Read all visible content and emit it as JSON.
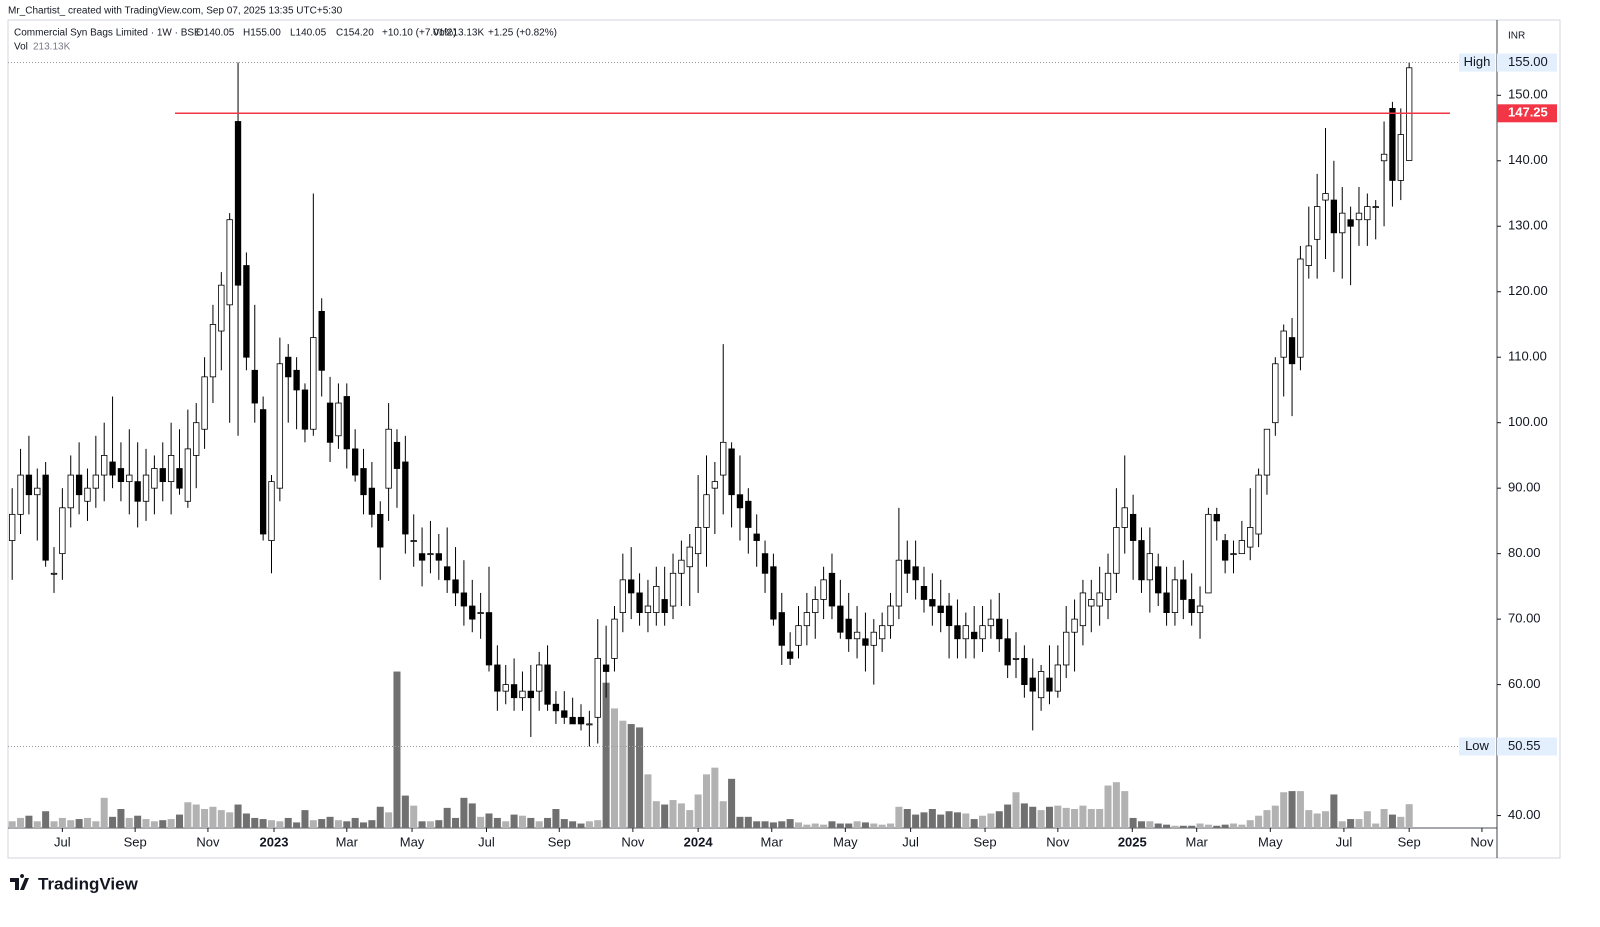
{
  "chart_data": {
    "type": "candlestick",
    "header": "Mr_Chartist_ created with TradingView.com, Sep 07, 2025 13:35 UTC+5:30",
    "legend": {
      "name": "Commercial Syn Bags Limited · 1W · BSE",
      "open": "O140.05",
      "high": "H155.00",
      "low": "L140.05",
      "close": "C154.20",
      "change": "+10.10 (+7.01%)",
      "volume": "Vol213.13K",
      "volume_change": "+1.25 (+0.82%)"
    },
    "volume_legend": {
      "label": "Vol",
      "value": "213.13K"
    },
    "currency": "INR",
    "brand": "TradingView",
    "up_color": "#ffffff",
    "down_color": "#000000",
    "outline_color": "#000000",
    "volume_up_color": "#b2b2b2",
    "volume_down_color": "#707070",
    "ylim": [
      38.1,
      161.5
    ],
    "yticks": [
      {
        "value": 40,
        "label": "40.00"
      },
      {
        "value": 60,
        "label": "60.00"
      },
      {
        "value": 70,
        "label": "70.00"
      },
      {
        "value": 80,
        "label": "80.00"
      },
      {
        "value": 90,
        "label": "90.00"
      },
      {
        "value": 100,
        "label": "100.00"
      },
      {
        "value": 110,
        "label": "110.00"
      },
      {
        "value": 120,
        "label": "120.00"
      },
      {
        "value": 130,
        "label": "130.00"
      },
      {
        "value": 140,
        "label": "140.00"
      },
      {
        "value": 150,
        "label": "150.00"
      }
    ],
    "vlim": [
      0,
      1700
    ],
    "xlim": [
      -0.5,
      177.5
    ],
    "xticks": [
      {
        "value": 6,
        "label": "Jul"
      },
      {
        "value": 14.7,
        "label": "Sep"
      },
      {
        "value": 23.4,
        "label": "Nov"
      },
      {
        "value": 31.3,
        "label": "2023"
      },
      {
        "value": 40,
        "label": "Mar"
      },
      {
        "value": 47.8,
        "label": "May"
      },
      {
        "value": 56.7,
        "label": "Jul"
      },
      {
        "value": 65.4,
        "label": "Sep"
      },
      {
        "value": 74.2,
        "label": "Nov"
      },
      {
        "value": 82,
        "label": "2024"
      },
      {
        "value": 90.8,
        "label": "Mar"
      },
      {
        "value": 99.6,
        "label": "May"
      },
      {
        "value": 107.4,
        "label": "Jul"
      },
      {
        "value": 116.3,
        "label": "Sep"
      },
      {
        "value": 125,
        "label": "Nov"
      },
      {
        "value": 133.9,
        "label": "2025"
      },
      {
        "value": 141.6,
        "label": "Mar"
      },
      {
        "value": 150.4,
        "label": "May"
      },
      {
        "value": 159.2,
        "label": "Jul"
      },
      {
        "value": 167,
        "label": "Sep"
      },
      {
        "value": 175.7,
        "label": "Nov"
      }
    ],
    "high_line": {
      "label": "High",
      "value": 155,
      "value_label": "155.00"
    },
    "low_line": {
      "label": "Low",
      "value": 50.55,
      "value_label": "50.55"
    },
    "level_line": {
      "value": 147.25,
      "label": "147.25",
      "color": "#f23645"
    },
    "ohlcv": [
      [
        82,
        90,
        76,
        86,
        60
      ],
      [
        86,
        96,
        83,
        92,
        90
      ],
      [
        92,
        98,
        86,
        89,
        110
      ],
      [
        89,
        93,
        82,
        90,
        60
      ],
      [
        92,
        94,
        78,
        79,
        150
      ],
      [
        77,
        81,
        74,
        77,
        60
      ],
      [
        80,
        90,
        76,
        87,
        90
      ],
      [
        87,
        95,
        84,
        92,
        70
      ],
      [
        92,
        97,
        86,
        89,
        80
      ],
      [
        88,
        93,
        85,
        90,
        90
      ],
      [
        90,
        98,
        87,
        92,
        60
      ],
      [
        92,
        100,
        88,
        95,
        270
      ],
      [
        94,
        104,
        90,
        92,
        100
      ],
      [
        93,
        97,
        88,
        91,
        170
      ],
      [
        91,
        99,
        86,
        92,
        90
      ],
      [
        91,
        97,
        84,
        88,
        110
      ],
      [
        88,
        96,
        85,
        92,
        80
      ],
      [
        90,
        95,
        86,
        93,
        60
      ],
      [
        93,
        97,
        88,
        91,
        70
      ],
      [
        91,
        100,
        86,
        95,
        80
      ],
      [
        93,
        99,
        89,
        90,
        120
      ],
      [
        88,
        102,
        87,
        96,
        230
      ],
      [
        95,
        103,
        90,
        100,
        210
      ],
      [
        99,
        110,
        96,
        107,
        170
      ],
      [
        107,
        118,
        103,
        115,
        190
      ],
      [
        114,
        123,
        108,
        121,
        160
      ],
      [
        118,
        132,
        100,
        131,
        140
      ],
      [
        146,
        155,
        98,
        121,
        210
      ],
      [
        124,
        126,
        108,
        110,
        130
      ],
      [
        108,
        118,
        100,
        103,
        90
      ],
      [
        102,
        104,
        82,
        83,
        80
      ],
      [
        82,
        92,
        77,
        91,
        70
      ],
      [
        90,
        113,
        88,
        109,
        60
      ],
      [
        110,
        112,
        100,
        107,
        90
      ],
      [
        108,
        110,
        99,
        105,
        50
      ],
      [
        105,
        106,
        97,
        99,
        160
      ],
      [
        99,
        135,
        98,
        113,
        70
      ],
      [
        117,
        119,
        104,
        108,
        80
      ],
      [
        103,
        107,
        94,
        97,
        100
      ],
      [
        98,
        106,
        96,
        103,
        70
      ],
      [
        104,
        106,
        93,
        96,
        60
      ],
      [
        96,
        99,
        91,
        92,
        90
      ],
      [
        93,
        96,
        86,
        89,
        50
      ],
      [
        90,
        94,
        84,
        86,
        70
      ],
      [
        86,
        88,
        76,
        81,
        190
      ],
      [
        90,
        103,
        85,
        99,
        140
      ],
      [
        97,
        99,
        87,
        93,
        1400
      ],
      [
        94,
        98,
        80,
        83,
        290
      ],
      [
        82,
        86,
        78,
        82,
        200
      ],
      [
        80,
        84,
        75,
        79,
        60
      ],
      [
        80,
        85,
        77,
        80,
        60
      ],
      [
        80,
        83,
        76,
        79,
        70
      ],
      [
        78,
        84,
        74,
        76,
        180
      ],
      [
        76,
        81,
        72,
        74,
        90
      ],
      [
        74,
        79,
        69,
        72,
        270
      ],
      [
        72,
        76,
        68,
        70,
        220
      ],
      [
        71,
        74,
        67,
        71,
        100
      ],
      [
        71,
        78,
        62,
        63,
        130
      ],
      [
        63,
        66,
        56,
        59,
        90
      ],
      [
        59,
        63,
        57,
        60,
        60
      ],
      [
        60,
        64,
        56,
        58,
        120
      ],
      [
        58,
        62,
        56,
        59,
        110
      ],
      [
        59,
        63,
        52,
        58,
        90
      ],
      [
        59,
        65,
        56,
        63,
        60
      ],
      [
        63,
        66,
        56,
        57,
        90
      ],
      [
        57,
        59,
        54,
        56,
        170
      ],
      [
        56,
        59,
        54,
        55,
        80
      ],
      [
        55,
        58,
        54,
        54,
        60
      ],
      [
        55,
        57,
        53,
        54,
        40
      ],
      [
        54,
        56,
        50.55,
        54,
        60
      ],
      [
        55,
        70,
        51,
        64,
        70
      ],
      [
        63,
        69,
        58,
        62,
        1300
      ],
      [
        64,
        72,
        62,
        70,
        1070
      ],
      [
        71,
        80,
        68,
        76,
        960
      ],
      [
        76,
        81,
        70,
        74,
        930
      ],
      [
        74,
        77,
        69,
        71,
        900
      ],
      [
        71,
        76,
        68,
        72,
        480
      ],
      [
        71,
        78,
        69,
        75,
        240
      ],
      [
        73,
        78,
        69,
        71,
        210
      ],
      [
        72,
        80,
        70,
        77,
        250
      ],
      [
        77,
        82,
        72,
        79,
        220
      ],
      [
        78,
        83,
        72,
        81,
        160
      ],
      [
        80,
        92,
        74,
        84,
        300
      ],
      [
        84,
        95,
        78,
        89,
        480
      ],
      [
        90,
        94,
        83,
        91,
        540
      ],
      [
        92,
        112,
        86,
        97,
        240
      ],
      [
        96,
        97,
        84,
        89,
        440
      ],
      [
        89,
        95,
        82,
        87,
        100
      ],
      [
        88,
        90,
        80,
        84,
        100
      ],
      [
        83,
        86,
        78,
        82,
        60
      ],
      [
        80,
        82,
        74,
        77,
        60
      ],
      [
        78,
        80,
        69,
        70,
        50
      ],
      [
        71,
        74,
        63,
        66,
        60
      ],
      [
        65,
        68,
        63,
        64,
        80
      ],
      [
        66,
        72,
        64,
        69,
        50
      ],
      [
        69,
        74,
        66,
        71,
        30
      ],
      [
        71,
        75,
        67,
        73,
        40
      ],
      [
        73,
        78,
        70,
        76,
        30
      ],
      [
        77,
        80,
        70,
        72,
        60
      ],
      [
        72,
        76,
        67,
        68,
        40
      ],
      [
        70,
        74,
        65,
        67,
        40
      ],
      [
        67,
        72,
        64,
        68,
        60
      ],
      [
        67,
        71,
        62,
        66,
        50
      ],
      [
        66,
        70,
        60,
        68,
        40
      ],
      [
        67,
        71,
        65,
        69,
        30
      ],
      [
        69,
        74,
        67,
        72,
        40
      ],
      [
        72,
        87,
        70,
        79,
        190
      ],
      [
        79,
        82,
        74,
        77,
        170
      ],
      [
        78,
        82,
        73,
        76,
        120
      ],
      [
        75,
        78,
        71,
        73,
        140
      ],
      [
        73,
        77,
        69,
        72,
        170
      ],
      [
        72,
        76,
        68,
        71,
        120
      ],
      [
        72,
        74,
        64,
        69,
        150
      ],
      [
        69,
        73,
        64,
        67,
        140
      ],
      [
        67,
        71,
        64,
        69,
        130
      ],
      [
        68,
        72,
        64,
        67,
        80
      ],
      [
        67,
        72,
        65,
        69,
        110
      ],
      [
        69,
        73,
        67,
        70,
        130
      ],
      [
        70,
        74,
        65,
        67,
        150
      ],
      [
        67,
        70,
        61,
        63,
        210
      ],
      [
        64,
        68,
        61,
        64,
        320
      ],
      [
        64,
        66,
        58,
        60,
        220
      ],
      [
        61,
        64,
        53,
        59,
        190
      ],
      [
        58,
        63,
        56,
        62,
        160
      ],
      [
        61,
        66,
        57,
        59,
        190
      ],
      [
        59,
        66,
        58,
        63,
        200
      ],
      [
        63,
        72,
        61,
        68,
        180
      ],
      [
        68,
        73,
        62,
        70,
        170
      ],
      [
        69,
        76,
        66,
        74,
        200
      ],
      [
        72,
        76,
        68,
        73,
        170
      ],
      [
        72,
        78,
        69,
        74,
        170
      ],
      [
        73,
        80,
        70,
        77,
        380
      ],
      [
        77,
        90,
        74,
        84,
        410
      ],
      [
        84,
        95,
        80,
        87,
        330
      ],
      [
        86,
        89,
        76,
        82,
        90
      ],
      [
        82,
        84,
        74,
        76,
        60
      ],
      [
        76,
        84,
        71,
        80,
        60
      ],
      [
        78,
        80,
        72,
        74,
        40
      ],
      [
        74,
        78,
        69,
        71,
        30
      ],
      [
        71,
        78,
        69,
        76,
        20
      ],
      [
        76,
        79,
        70,
        73,
        20
      ],
      [
        73,
        77,
        69,
        71,
        20
      ],
      [
        71,
        75,
        67,
        72,
        40
      ],
      [
        74,
        87,
        74,
        86,
        30
      ],
      [
        86,
        87,
        82,
        85,
        20
      ],
      [
        82,
        83,
        77,
        79,
        30
      ],
      [
        80,
        82,
        77,
        80,
        40
      ],
      [
        80,
        85,
        80,
        82,
        30
      ],
      [
        81,
        90,
        79,
        84,
        70
      ],
      [
        83,
        93,
        81,
        92,
        110
      ],
      [
        92,
        99,
        89,
        99,
        160
      ],
      [
        100,
        110,
        98,
        109,
        200
      ],
      [
        110,
        115,
        104,
        114,
        320
      ],
      [
        113,
        116,
        101,
        109,
        330
      ],
      [
        110,
        127,
        108,
        125,
        330
      ],
      [
        124,
        133,
        122,
        127,
        160
      ],
      [
        128,
        138,
        122,
        133,
        130
      ],
      [
        134,
        145,
        125,
        135,
        150
      ],
      [
        134,
        140,
        123,
        129,
        300
      ],
      [
        129,
        136,
        122,
        132,
        60
      ],
      [
        131,
        133,
        121,
        130,
        80
      ],
      [
        131,
        136,
        127,
        132,
        80
      ],
      [
        131,
        135,
        127,
        133,
        150
      ],
      [
        133,
        134,
        128,
        133,
        40
      ],
      [
        140,
        146,
        130,
        141,
        170
      ],
      [
        148,
        149,
        133,
        137,
        120
      ],
      [
        137,
        148,
        134,
        144,
        100
      ],
      [
        140.05,
        155,
        140.05,
        154.2,
        213.13
      ]
    ]
  }
}
